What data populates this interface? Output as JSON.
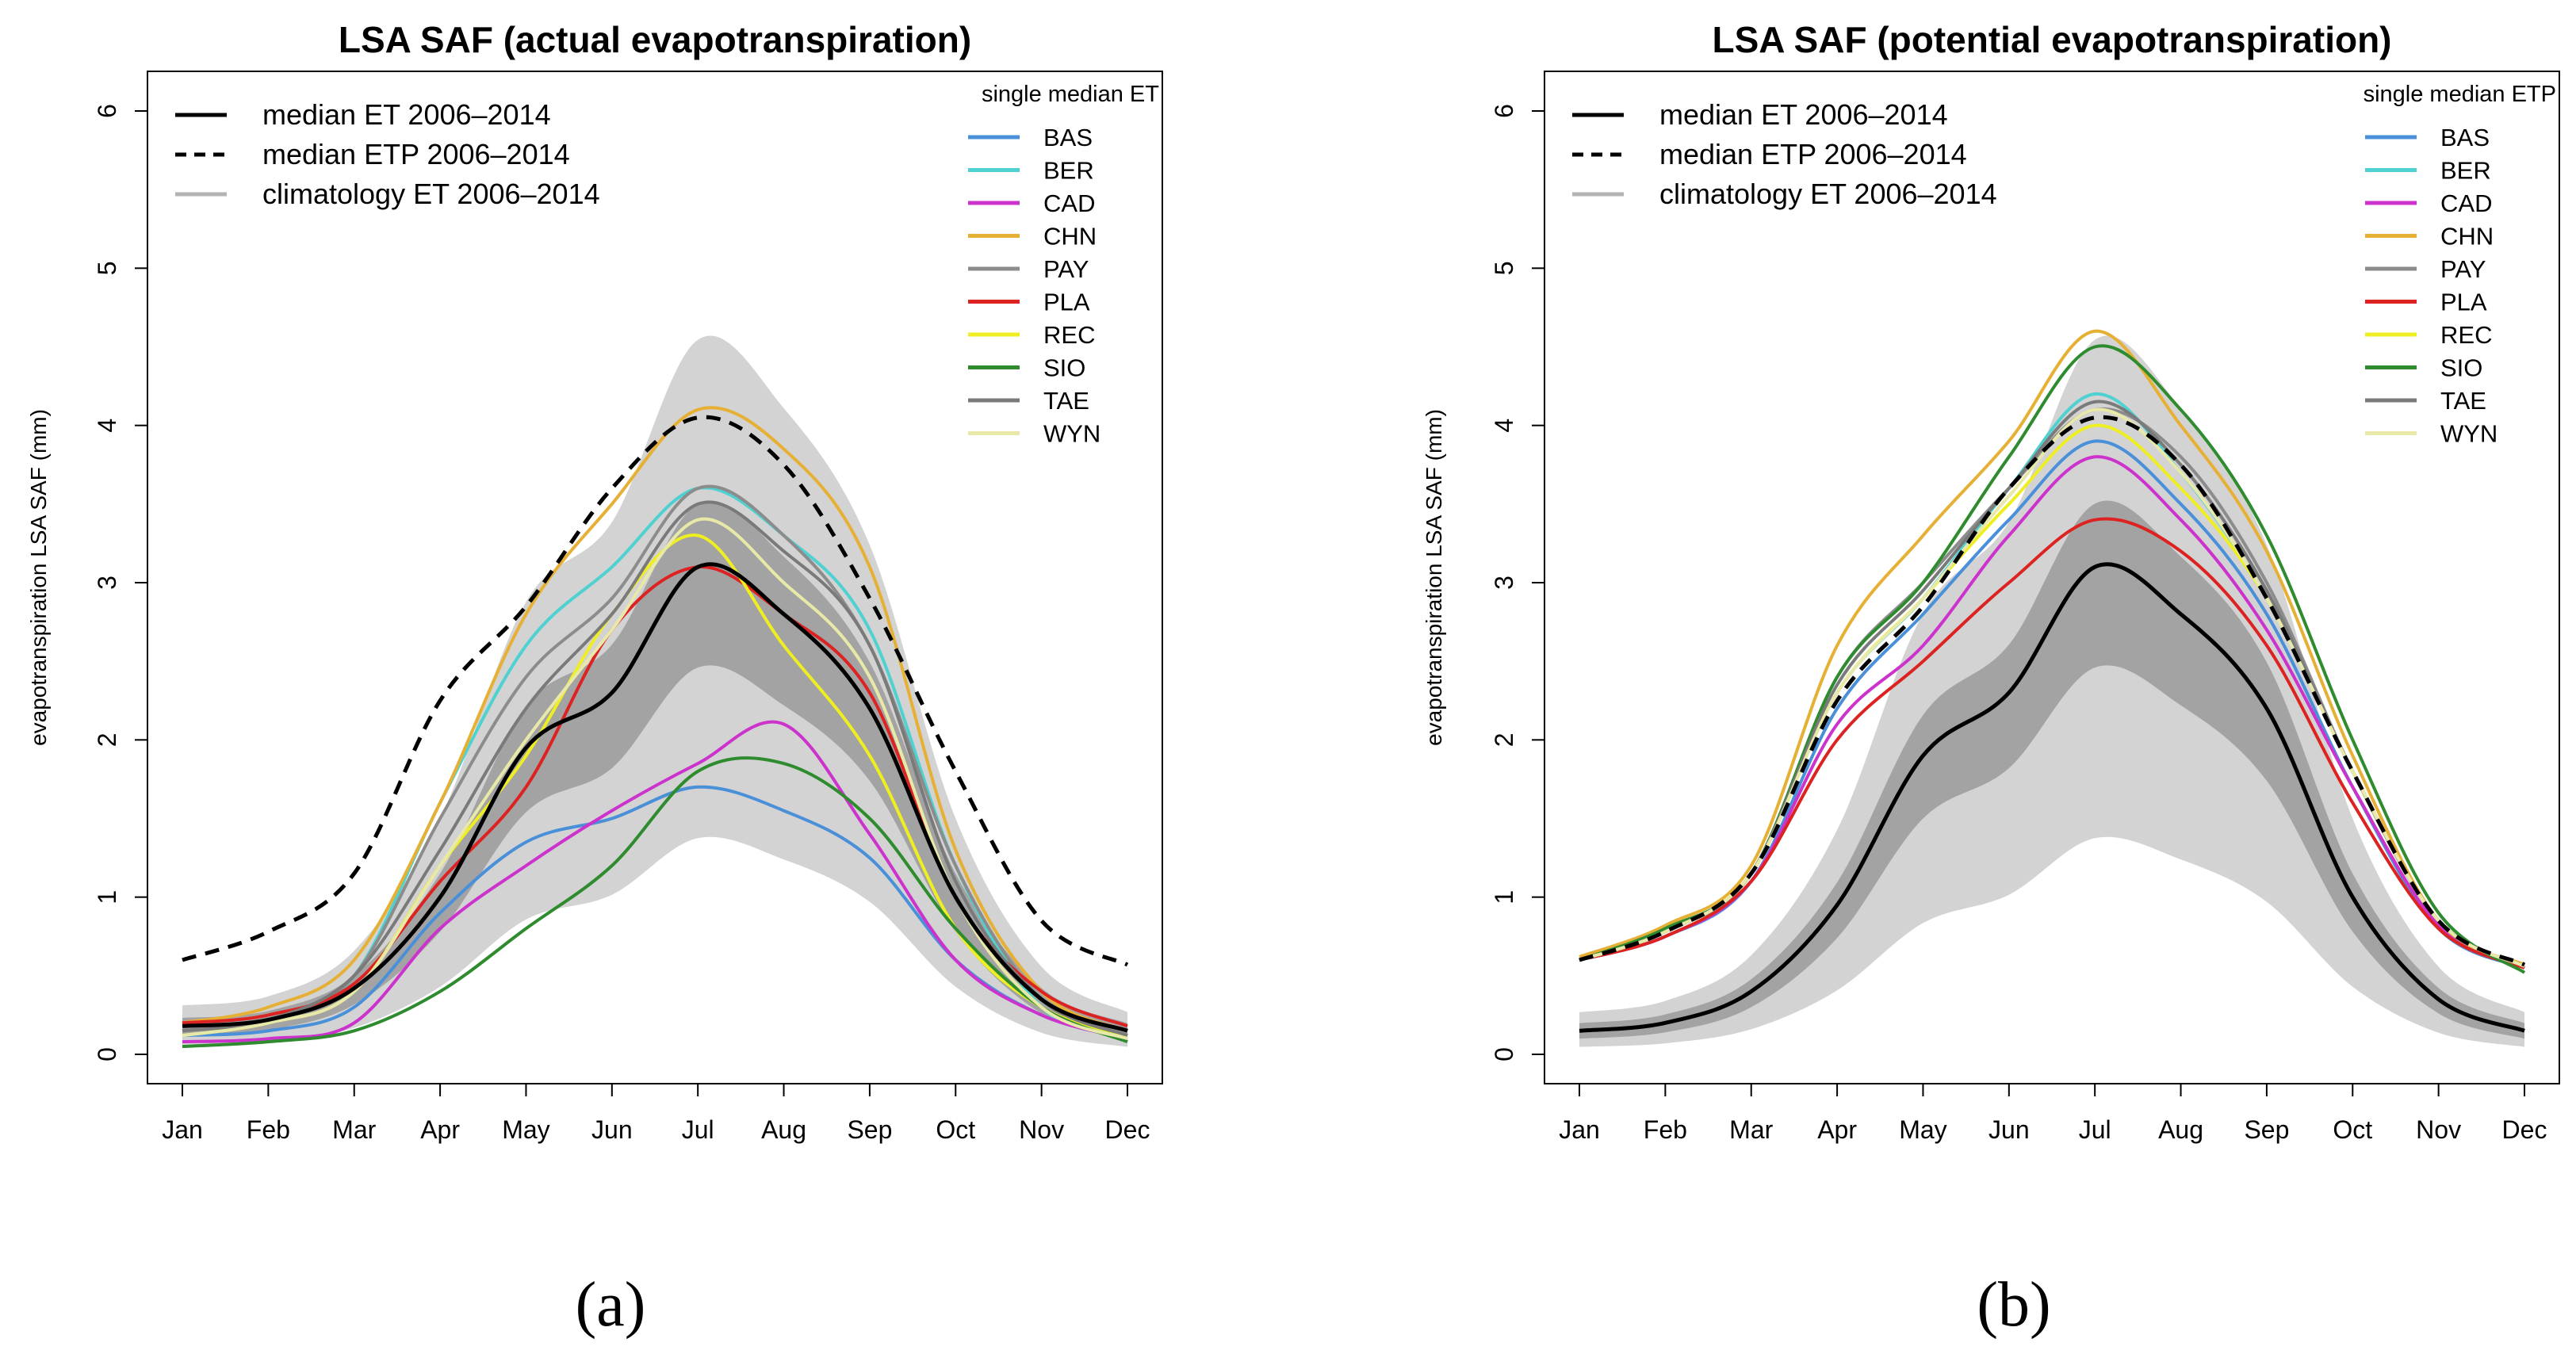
{
  "chart_data": [
    {
      "type": "line",
      "panel": "a",
      "caption": "(a)",
      "title": "LSA SAF (actual evapotranspiration)",
      "xlabel": "",
      "ylabel": "evapotranspiration LSA SAF (mm)",
      "ylim": [
        0,
        6
      ],
      "yticks": [
        "0",
        "1",
        "2",
        "3",
        "4",
        "5",
        "6"
      ],
      "x": [
        "Jan",
        "Feb",
        "Mar",
        "Apr",
        "May",
        "Jun",
        "Jul",
        "Aug",
        "Sep",
        "Oct",
        "Nov",
        "Dec"
      ],
      "legend_main": [
        {
          "label": "median ET 2006–2014",
          "color": "#000000",
          "style": "solid"
        },
        {
          "label": "median ETP 2006–2014",
          "color": "#000000",
          "style": "dashed"
        },
        {
          "label": "climatology ET 2006–2014",
          "color": "#b3b3b3",
          "style": "solid"
        }
      ],
      "legend_stations_title": "single median ET",
      "series": [
        {
          "name": "median ET 2006–2014",
          "color": "#000000",
          "values": [
            0.18,
            0.22,
            0.42,
            1.0,
            1.95,
            2.3,
            3.1,
            2.8,
            2.2,
            1.0,
            0.35,
            0.15
          ]
        },
        {
          "name": "median ETP 2006–2014",
          "color": "#000000",
          "values": [
            0.6,
            0.78,
            1.15,
            2.25,
            2.85,
            3.6,
            4.05,
            3.75,
            2.9,
            1.8,
            0.85,
            0.57
          ]
        },
        {
          "name": "BAS",
          "color": "#4a90d9",
          "values": [
            0.12,
            0.15,
            0.3,
            0.9,
            1.35,
            1.5,
            1.7,
            1.55,
            1.25,
            0.6,
            0.25,
            0.1
          ]
        },
        {
          "name": "BER",
          "color": "#4fd1d1",
          "values": [
            0.15,
            0.22,
            0.5,
            1.6,
            2.6,
            3.1,
            3.6,
            3.3,
            2.7,
            1.2,
            0.3,
            0.12
          ]
        },
        {
          "name": "CAD",
          "color": "#cc33cc",
          "values": [
            0.08,
            0.1,
            0.2,
            0.8,
            1.2,
            1.55,
            1.85,
            2.1,
            1.4,
            0.6,
            0.25,
            0.1
          ]
        },
        {
          "name": "CHN",
          "color": "#e6b035",
          "values": [
            0.2,
            0.3,
            0.6,
            1.6,
            2.8,
            3.5,
            4.1,
            3.85,
            3.1,
            1.3,
            0.4,
            0.15
          ]
        },
        {
          "name": "PAY",
          "color": "#8c8c8c",
          "values": [
            0.15,
            0.22,
            0.5,
            1.5,
            2.4,
            2.9,
            3.6,
            3.3,
            2.6,
            1.2,
            0.35,
            0.12
          ]
        },
        {
          "name": "PLA",
          "color": "#dd2222",
          "values": [
            0.2,
            0.25,
            0.45,
            1.1,
            1.7,
            2.7,
            3.1,
            2.8,
            2.3,
            1.0,
            0.4,
            0.18
          ]
        },
        {
          "name": "REC",
          "color": "#eeee22",
          "values": [
            0.12,
            0.2,
            0.4,
            1.2,
            1.9,
            2.8,
            3.3,
            2.6,
            1.9,
            0.8,
            0.3,
            0.12
          ]
        },
        {
          "name": "SIO",
          "color": "#2e8b2e",
          "values": [
            0.05,
            0.08,
            0.15,
            0.4,
            0.8,
            1.2,
            1.8,
            1.85,
            1.5,
            0.8,
            0.3,
            0.08
          ]
        },
        {
          "name": "TAE",
          "color": "#7a7a7a",
          "values": [
            0.15,
            0.22,
            0.5,
            1.3,
            2.2,
            2.8,
            3.5,
            3.2,
            2.6,
            1.1,
            0.35,
            0.12
          ]
        },
        {
          "name": "WYN",
          "color": "#e8e8a8",
          "values": [
            0.12,
            0.2,
            0.4,
            1.2,
            2.0,
            2.7,
            3.4,
            3.0,
            2.4,
            1.0,
            0.3,
            0.1
          ]
        }
      ]
    },
    {
      "type": "line",
      "panel": "b",
      "caption": "(b)",
      "title": "LSA SAF (potential evapotranspiration)",
      "xlabel": "",
      "ylabel": "evapotranspiration LSA SAF (mm)",
      "ylim": [
        0,
        6
      ],
      "yticks": [
        "0",
        "1",
        "2",
        "3",
        "4",
        "5",
        "6"
      ],
      "x": [
        "Jan",
        "Feb",
        "Mar",
        "Apr",
        "May",
        "Jun",
        "Jul",
        "Aug",
        "Sep",
        "Oct",
        "Nov",
        "Dec"
      ],
      "legend_main": [
        {
          "label": "median ET 2006–2014",
          "color": "#000000",
          "style": "solid"
        },
        {
          "label": "median ETP 2006–2014",
          "color": "#000000",
          "style": "dashed"
        },
        {
          "label": "climatology ET 2006–2014",
          "color": "#b3b3b3",
          "style": "solid"
        }
      ],
      "legend_stations_title": "single median ETP",
      "series": [
        {
          "name": "median ET 2006–2014",
          "color": "#000000",
          "values": [
            0.15,
            0.2,
            0.4,
            0.95,
            1.9,
            2.3,
            3.1,
            2.8,
            2.2,
            1.0,
            0.35,
            0.15
          ]
        },
        {
          "name": "median ETP 2006–2014",
          "color": "#000000",
          "values": [
            0.6,
            0.78,
            1.15,
            2.25,
            2.85,
            3.6,
            4.05,
            3.75,
            2.9,
            1.8,
            0.85,
            0.57
          ]
        },
        {
          "name": "BAS",
          "color": "#4a90d9",
          "values": [
            0.6,
            0.75,
            1.1,
            2.2,
            2.8,
            3.4,
            3.9,
            3.5,
            2.8,
            1.7,
            0.8,
            0.55
          ]
        },
        {
          "name": "BER",
          "color": "#4fd1d1",
          "values": [
            0.6,
            0.78,
            1.15,
            2.3,
            2.9,
            3.6,
            4.2,
            3.7,
            2.9,
            1.8,
            0.85,
            0.56
          ]
        },
        {
          "name": "CAD",
          "color": "#cc33cc",
          "values": [
            0.6,
            0.75,
            1.1,
            2.1,
            2.6,
            3.3,
            3.8,
            3.4,
            2.7,
            1.7,
            0.82,
            0.55
          ]
        },
        {
          "name": "CHN",
          "color": "#e6b035",
          "values": [
            0.62,
            0.82,
            1.2,
            2.6,
            3.3,
            3.9,
            4.6,
            4.0,
            3.2,
            1.9,
            0.85,
            0.57
          ]
        },
        {
          "name": "PAY",
          "color": "#8c8c8c",
          "values": [
            0.6,
            0.8,
            1.15,
            2.4,
            3.0,
            3.6,
            4.1,
            3.8,
            3.0,
            1.8,
            0.85,
            0.56
          ]
        },
        {
          "name": "PLA",
          "color": "#dd2222",
          "values": [
            0.6,
            0.75,
            1.1,
            2.0,
            2.5,
            3.0,
            3.4,
            3.2,
            2.6,
            1.6,
            0.8,
            0.55
          ]
        },
        {
          "name": "REC",
          "color": "#eeee22",
          "values": [
            0.6,
            0.78,
            1.15,
            2.3,
            2.9,
            3.5,
            4.0,
            3.6,
            2.9,
            1.8,
            0.85,
            0.56
          ]
        },
        {
          "name": "SIO",
          "color": "#2e8b2e",
          "values": [
            0.6,
            0.8,
            1.15,
            2.4,
            3.0,
            3.8,
            4.5,
            4.1,
            3.3,
            2.0,
            0.9,
            0.52
          ]
        },
        {
          "name": "TAE",
          "color": "#7a7a7a",
          "values": [
            0.6,
            0.78,
            1.15,
            2.35,
            2.95,
            3.6,
            4.15,
            3.75,
            2.95,
            1.8,
            0.85,
            0.56
          ]
        },
        {
          "name": "WYN",
          "color": "#e8e8a8",
          "values": [
            0.6,
            0.78,
            1.15,
            2.3,
            2.9,
            3.55,
            4.1,
            3.7,
            2.9,
            1.8,
            0.85,
            0.56
          ]
        }
      ]
    }
  ]
}
